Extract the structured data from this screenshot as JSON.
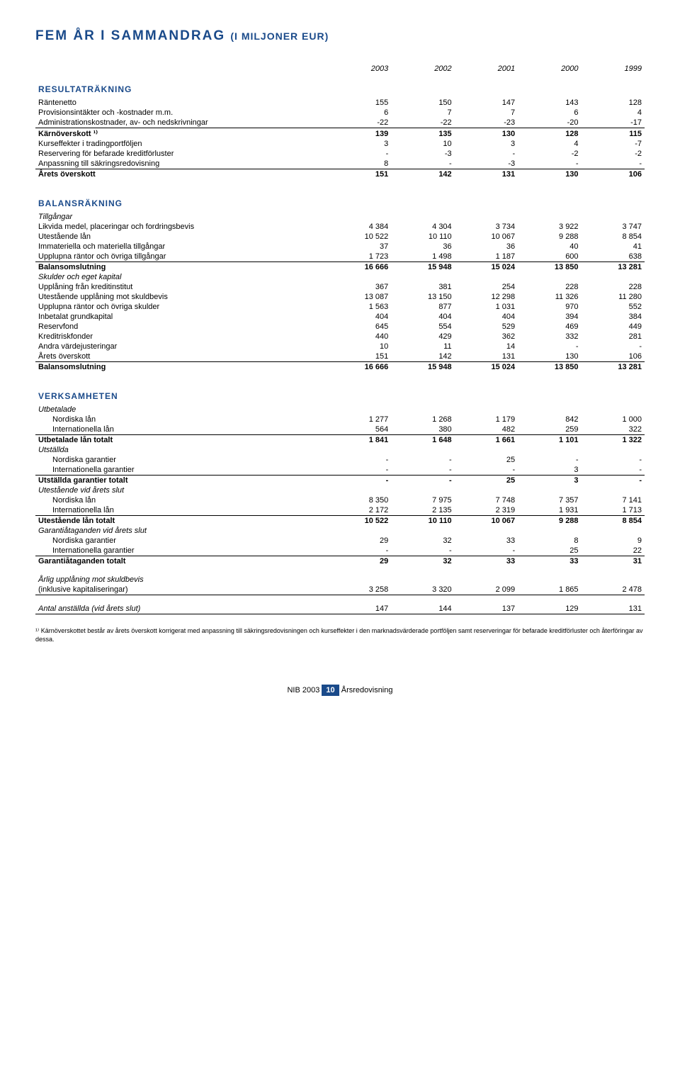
{
  "title_main": "FEM ÅR I SAMMANDRAG",
  "title_sub": "(I MILJONER EUR)",
  "years": [
    "2003",
    "2002",
    "2001",
    "2000",
    "1999"
  ],
  "sections": {
    "resultatrakning": {
      "heading": "RESULTATRÄKNING",
      "rows": [
        {
          "label": "Räntenetto",
          "v": [
            "155",
            "150",
            "147",
            "143",
            "128"
          ]
        },
        {
          "label": "Provisionsintäkter och -kostnader m.m.",
          "v": [
            "6",
            "7",
            "7",
            "6",
            "4"
          ]
        },
        {
          "label": "Administrationskostnader, av- och nedskrivningar",
          "v": [
            "-22",
            "-22",
            "-23",
            "-20",
            "-17"
          ]
        }
      ],
      "karnoverskott": {
        "label": "Kärnöverskott ¹⁾",
        "v": [
          "139",
          "135",
          "130",
          "128",
          "115"
        ]
      },
      "rows2": [
        {
          "label": "Kurseffekter i tradingportföljen",
          "v": [
            "3",
            "10",
            "3",
            "4",
            "-7"
          ]
        },
        {
          "label": "Reservering för befarade kreditförluster",
          "v": [
            "-",
            "-3",
            "-",
            "-2",
            "-2"
          ]
        },
        {
          "label": "Anpassning till säkringsredovisning",
          "v": [
            "8",
            "-",
            "-3",
            "-",
            "-"
          ]
        }
      ],
      "arets": {
        "label": "Årets överskott",
        "v": [
          "151",
          "142",
          "131",
          "130",
          "106"
        ]
      }
    },
    "balansrakning": {
      "heading": "BALANSRÄKNING",
      "tillgangar_head": "Tillgångar",
      "tillgangar": [
        {
          "label": "Likvida medel, placeringar och fordringsbevis",
          "v": [
            "4 384",
            "4 304",
            "3 734",
            "3 922",
            "3 747"
          ]
        },
        {
          "label": "Utestående lån",
          "v": [
            "10 522",
            "10 110",
            "10 067",
            "9 288",
            "8 854"
          ]
        },
        {
          "label": "Immateriella och materiella tillgångar",
          "v": [
            "37",
            "36",
            "36",
            "40",
            "41"
          ]
        },
        {
          "label": "Upplupna räntor och övriga tillgångar",
          "v": [
            "1 723",
            "1 498",
            "1 187",
            "600",
            "638"
          ]
        }
      ],
      "balans1": {
        "label": "Balansomslutning",
        "v": [
          "16 666",
          "15 948",
          "15 024",
          "13 850",
          "13 281"
        ]
      },
      "skulder_head": "Skulder och eget kapital",
      "skulder": [
        {
          "label": "Upplåning från kreditinstitut",
          "v": [
            "367",
            "381",
            "254",
            "228",
            "228"
          ]
        },
        {
          "label": "Utestående upplåning mot skuldbevis",
          "v": [
            "13 087",
            "13 150",
            "12 298",
            "11 326",
            "11 280"
          ]
        },
        {
          "label": "Upplupna räntor och övriga skulder",
          "v": [
            "1 563",
            "877",
            "1 031",
            "970",
            "552"
          ]
        },
        {
          "label": "Inbetalat grundkapital",
          "v": [
            "404",
            "404",
            "404",
            "394",
            "384"
          ]
        },
        {
          "label": "Reservfond",
          "v": [
            "645",
            "554",
            "529",
            "469",
            "449"
          ]
        },
        {
          "label": "Kreditriskfonder",
          "v": [
            "440",
            "429",
            "362",
            "332",
            "281"
          ]
        },
        {
          "label": "Andra värdejusteringar",
          "v": [
            "10",
            "11",
            "14",
            "-",
            "-"
          ]
        },
        {
          "label": "Årets överskott",
          "v": [
            "151",
            "142",
            "131",
            "130",
            "106"
          ]
        }
      ],
      "balans2": {
        "label": "Balansomslutning",
        "v": [
          "16 666",
          "15 948",
          "15 024",
          "13 850",
          "13 281"
        ]
      }
    },
    "verksamheten": {
      "heading": "VERKSAMHETEN",
      "utbetalade_head": "Utbetalade",
      "utbetalade": [
        {
          "label": "Nordiska lån",
          "v": [
            "1 277",
            "1 268",
            "1 179",
            "842",
            "1 000"
          ]
        },
        {
          "label": "Internationella lån",
          "v": [
            "564",
            "380",
            "482",
            "259",
            "322"
          ]
        }
      ],
      "utbetalade_tot": {
        "label": "Utbetalade lån totalt",
        "v": [
          "1 841",
          "1 648",
          "1 661",
          "1 101",
          "1 322"
        ]
      },
      "utstallda_head": "Utställda",
      "utstallda": [
        {
          "label": "Nordiska garantier",
          "v": [
            "-",
            "-",
            "25",
            "-",
            "-"
          ]
        },
        {
          "label": "Internationella garantier",
          "v": [
            "-",
            "-",
            "-",
            "3",
            "-"
          ]
        }
      ],
      "utstallda_tot": {
        "label": "Utställda garantier totalt",
        "v": [
          "-",
          "-",
          "25",
          "3",
          "-"
        ]
      },
      "utestaende_head": "Utestående vid årets slut",
      "utestaende": [
        {
          "label": "Nordiska lån",
          "v": [
            "8 350",
            "7 975",
            "7 748",
            "7 357",
            "7 141"
          ]
        },
        {
          "label": "Internationella lån",
          "v": [
            "2 172",
            "2 135",
            "2 319",
            "1 931",
            "1 713"
          ]
        }
      ],
      "utestaende_tot": {
        "label": "Utestående lån totalt",
        "v": [
          "10 522",
          "10 110",
          "10 067",
          "9 288",
          "8 854"
        ]
      },
      "garanti_head": "Garantiåtaganden vid årets slut",
      "garanti": [
        {
          "label": "Nordiska garantier",
          "v": [
            "29",
            "32",
            "33",
            "8",
            "9"
          ]
        },
        {
          "label": "Internationella garantier",
          "v": [
            "-",
            "-",
            "-",
            "25",
            "22"
          ]
        }
      ],
      "garanti_tot": {
        "label": "Garantiåtaganden totalt",
        "v": [
          "29",
          "32",
          "33",
          "33",
          "31"
        ]
      },
      "arlig_head": "Årlig upplåning mot skuldbevis",
      "arlig_sub": "(inklusive kapitaliseringar)",
      "arlig": {
        "v": [
          "3 258",
          "3 320",
          "2 099",
          "1 865",
          "2 478"
        ]
      },
      "antal": {
        "label": "Antal anställda (vid årets slut)",
        "v": [
          "147",
          "144",
          "137",
          "129",
          "131"
        ]
      }
    }
  },
  "footnote": "¹⁾ Kärnöverskottet består av årets överskott korrigerat med anpassning till säkringsredovisningen och kurseffekter i den marknadsvärderade portföljen samt reserveringar för befarade kreditförluster och återföringar av dessa.",
  "footer_left": "NIB 2003",
  "footer_page": "10",
  "footer_right": "Årsredovisning"
}
